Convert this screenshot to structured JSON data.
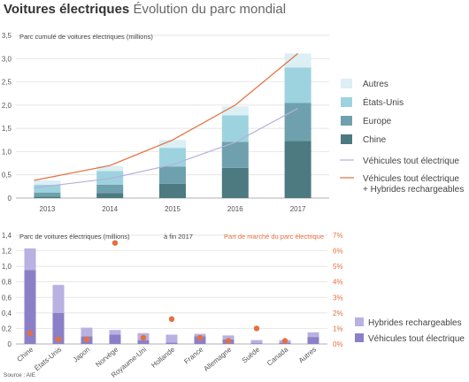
{
  "header": {
    "title_bold": "Voitures électriques",
    "title_light": "Évolution du parc mondial"
  },
  "source": "Source : AIE",
  "colors": {
    "autres": "#dbeff4",
    "etats_unis": "#9dd3de",
    "europe": "#6ea1ad",
    "chine": "#4c7a80",
    "bev_line": "#b7afde",
    "total_line": "#e4703f",
    "hybrid": "#b8b1e2",
    "bev": "#8b80c7",
    "share": "#e4703f"
  },
  "chart_data": [
    {
      "type": "bar",
      "ylabel": "Parc cumulé de voitures électriques  (millions)",
      "categories": [
        "2013",
        "2014",
        "2015",
        "2016",
        "2017"
      ],
      "ylim": [
        0,
        3.5
      ],
      "yticks": [
        "0",
        "0,5",
        "1,0",
        "1,5",
        "2,0",
        "2,5",
        "3,0",
        "3,5"
      ],
      "stacked": true,
      "series": [
        {
          "name": "Chine",
          "values": [
            0.03,
            0.11,
            0.31,
            0.65,
            1.23
          ]
        },
        {
          "name": "Europe",
          "values": [
            0.09,
            0.18,
            0.37,
            0.56,
            0.82
          ]
        },
        {
          "name": "États-Unis",
          "values": [
            0.17,
            0.29,
            0.4,
            0.57,
            0.76
          ]
        },
        {
          "name": "Autres",
          "values": [
            0.09,
            0.11,
            0.17,
            0.19,
            0.3
          ]
        }
      ],
      "lines": [
        {
          "name": "Véhicules tout électrique",
          "values": [
            0.22,
            0.42,
            0.72,
            1.2,
            1.93
          ]
        },
        {
          "name": "Véhicules tout électrique\n+ Hybrides rechargeables",
          "values": [
            0.38,
            0.7,
            1.25,
            2.0,
            3.11
          ]
        }
      ],
      "grid": true,
      "legend": "right"
    },
    {
      "type": "bar",
      "ylabel": "Parc de voitures électriques  (millions)",
      "note": "à fin 2017",
      "y2label": "Part de marché du parc électrique",
      "categories": [
        "Chine",
        "États-Unis",
        "Japon",
        "Norvège",
        "Royaume-Uni",
        "Hollande",
        "France",
        "Allemagne",
        "Suède",
        "Canada",
        "Autres"
      ],
      "ylim": [
        0,
        1.4
      ],
      "yticks": [
        "0",
        "0,2",
        "0,4",
        "0,6",
        "0,8",
        "1,0",
        "1,2",
        "1,4"
      ],
      "y2lim": [
        0,
        7
      ],
      "y2ticks": [
        "0%",
        "1%",
        "2%",
        "3%",
        "4%",
        "5%",
        "6%",
        "7%"
      ],
      "stacked": true,
      "series": [
        {
          "name": "Véhicules tout électrique",
          "values": [
            0.95,
            0.4,
            0.1,
            0.12,
            0.05,
            0.02,
            0.1,
            0.06,
            0.01,
            0.02,
            0.09
          ]
        },
        {
          "name": "Hybrides rechargeables",
          "values": [
            0.28,
            0.36,
            0.11,
            0.06,
            0.09,
            0.1,
            0.03,
            0.05,
            0.04,
            0.03,
            0.06
          ]
        }
      ],
      "share": {
        "values": [
          0.7,
          0.3,
          0.3,
          6.5,
          0.4,
          1.6,
          0.4,
          0.2,
          1.0,
          0.2,
          null
        ]
      },
      "grid": true,
      "legend": "bottom-right"
    }
  ]
}
